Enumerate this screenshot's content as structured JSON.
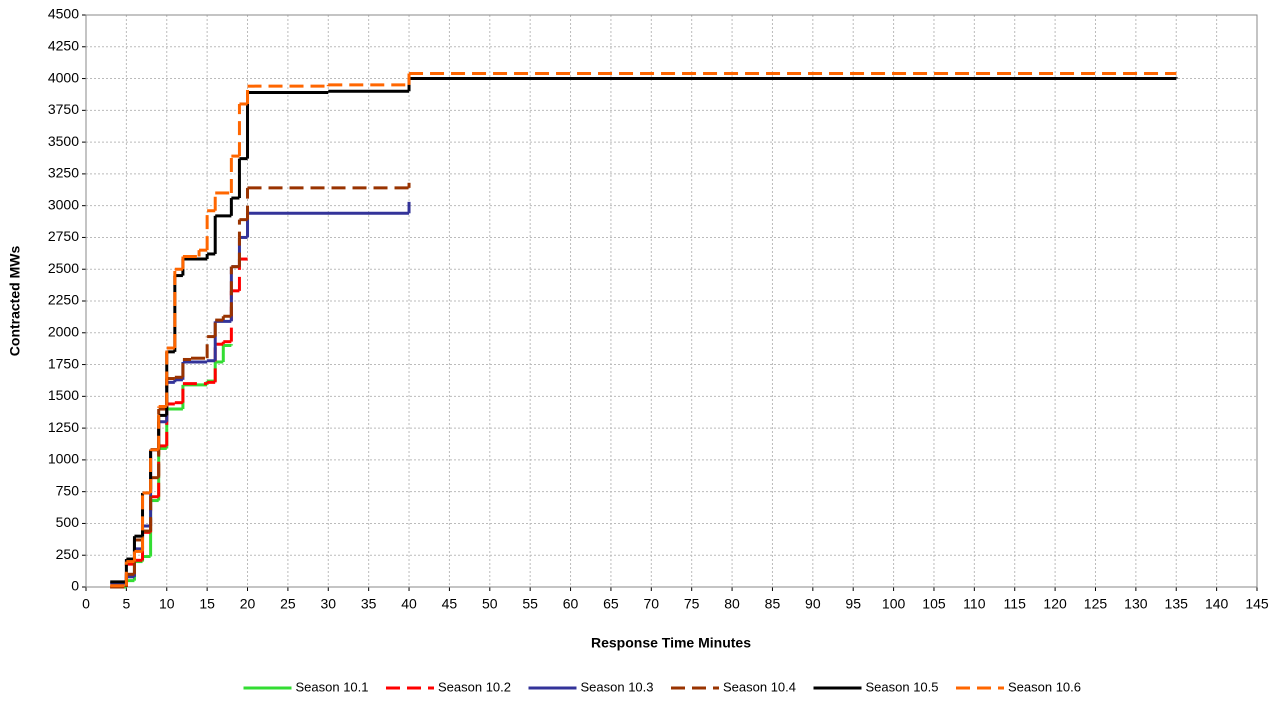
{
  "chart_data": {
    "type": "step-line",
    "x_label": "Response Time Minutes",
    "y_label": "Contracted MWs",
    "xlim": [
      0,
      145
    ],
    "xticks": [
      0,
      5,
      10,
      15,
      20,
      25,
      30,
      35,
      40,
      45,
      50,
      55,
      60,
      65,
      70,
      75,
      80,
      85,
      90,
      95,
      100,
      105,
      110,
      115,
      120,
      125,
      130,
      135,
      140,
      145
    ],
    "ylim": [
      0,
      4500
    ],
    "yticks": [
      0,
      250,
      500,
      750,
      1000,
      1250,
      1500,
      1750,
      2000,
      2250,
      2500,
      2750,
      3000,
      3250,
      3500,
      3750,
      4000,
      4250,
      4500
    ],
    "grid": true,
    "legend": "bottom",
    "series": [
      {
        "name": "Season 10.1",
        "color": "#33dd33",
        "dashed": false,
        "x": [
          3,
          5,
          6,
          7,
          8,
          9,
          10,
          12,
          15,
          16,
          17,
          18
        ],
        "values": [
          0,
          50,
          200,
          240,
          680,
          1090,
          1400,
          1590,
          1620,
          1770,
          1900,
          1910
        ]
      },
      {
        "name": "Season 10.2",
        "color": "#ff0000",
        "dashed": true,
        "x": [
          3,
          5,
          6,
          7,
          8,
          9,
          10,
          11,
          12,
          15,
          16,
          17,
          18,
          19,
          20
        ],
        "values": [
          0,
          180,
          210,
          430,
          710,
          1110,
          1440,
          1450,
          1600,
          1610,
          1910,
          1930,
          2330,
          2580,
          2580
        ]
      },
      {
        "name": "Season 10.3",
        "color": "#333399",
        "dashed": false,
        "x": [
          3,
          5,
          6,
          7,
          8,
          9,
          10,
          11,
          12,
          15,
          16,
          18,
          19,
          20,
          40
        ],
        "values": [
          30,
          80,
          300,
          480,
          1080,
          1300,
          1610,
          1630,
          1770,
          1780,
          2090,
          2520,
          2750,
          2940,
          3030
        ]
      },
      {
        "name": "Season 10.4",
        "color": "#993300",
        "dashed": true,
        "x": [
          3,
          5,
          6,
          7,
          8,
          9,
          10,
          11,
          12,
          13,
          15,
          16,
          17,
          18,
          19,
          20,
          40
        ],
        "values": [
          0,
          100,
          370,
          440,
          860,
          1400,
          1640,
          1650,
          1790,
          1800,
          1970,
          2100,
          2130,
          2520,
          2890,
          3140,
          3180
        ]
      },
      {
        "name": "Season 10.5",
        "color": "#000000",
        "dashed": false,
        "x": [
          3,
          5,
          6,
          7,
          8,
          9,
          10,
          11,
          12,
          15,
          16,
          18,
          19,
          20,
          30,
          40,
          135
        ],
        "values": [
          40,
          220,
          400,
          740,
          1080,
          1350,
          1850,
          2450,
          2580,
          2620,
          2920,
          3060,
          3370,
          3890,
          3900,
          4000,
          4010
        ]
      },
      {
        "name": "Season 10.6",
        "color": "#ff6600",
        "dashed": true,
        "x": [
          3,
          5,
          6,
          7,
          8,
          9,
          10,
          11,
          12,
          14,
          15,
          16,
          18,
          19,
          20,
          30,
          40,
          135
        ],
        "values": [
          10,
          200,
          280,
          740,
          1080,
          1420,
          1880,
          2500,
          2600,
          2650,
          2960,
          3100,
          3390,
          3800,
          3940,
          3950,
          4040,
          4040
        ]
      }
    ]
  }
}
